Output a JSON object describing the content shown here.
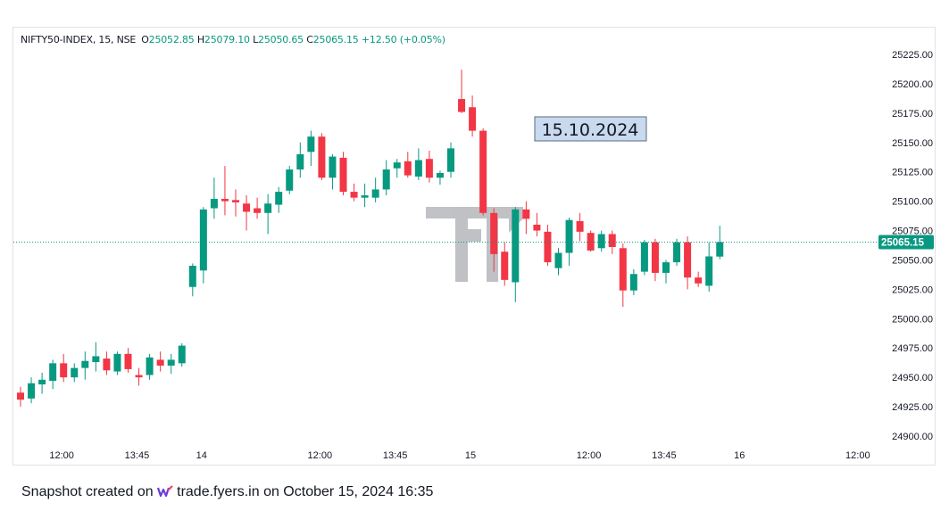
{
  "legend": {
    "symbol": "NIFTY50-INDEX, 15, NSE",
    "open_key": "O",
    "open": "25052.85",
    "high_key": "H",
    "high": "25079.10",
    "low_key": "L",
    "low": "25050.65",
    "close_key": "C",
    "close": "25065.15",
    "change": "+12.50 (+0.05%)"
  },
  "date_label": "15.10.2024",
  "footer": {
    "prefix": "Snapshot created on",
    "brand": "trade.fyers.in",
    "suffix": "on October 15, 2024 16:35"
  },
  "colors": {
    "up": "#089981",
    "down": "#f23645",
    "grid": "#e0e3eb",
    "last_price_badge": "#089981",
    "date_label_bg": "#c9d9ee",
    "date_label_border": "#5b6b82"
  },
  "chart_data": {
    "type": "candlestick",
    "y_axis": {
      "min": 24890,
      "max": 25230,
      "ticks": [
        "25225.00",
        "25200.00",
        "25175.00",
        "25150.00",
        "25125.00",
        "25100.00",
        "25075.00",
        "25050.00",
        "25025.00",
        "25000.00",
        "24975.00",
        "24950.00",
        "24925.00",
        "24900.00"
      ],
      "last_price": 25065.15,
      "last_price_label": "25065.15"
    },
    "x_axis": {
      "ticks": [
        {
          "label": "12:00",
          "index": 2
        },
        {
          "label": "13:45",
          "index": 9
        },
        {
          "label": "14",
          "index": 15
        },
        {
          "label": "12:00",
          "index": 26
        },
        {
          "label": "13:45",
          "index": 33
        },
        {
          "label": "15",
          "index": 40
        },
        {
          "label": "12:00",
          "index": 51
        },
        {
          "label": "13:45",
          "index": 58
        },
        {
          "label": "16",
          "index": 65
        },
        {
          "label": "12:00",
          "index": 76
        }
      ]
    },
    "candles": [
      {
        "o": 24937,
        "h": 24942,
        "l": 24925,
        "c": 24931
      },
      {
        "o": 24932,
        "h": 24950,
        "l": 24928,
        "c": 24945
      },
      {
        "o": 24944,
        "h": 24954,
        "l": 24936,
        "c": 24948
      },
      {
        "o": 24947,
        "h": 24965,
        "l": 24940,
        "c": 24962
      },
      {
        "o": 24962,
        "h": 24970,
        "l": 24946,
        "c": 24950
      },
      {
        "o": 24950,
        "h": 24962,
        "l": 24946,
        "c": 24958
      },
      {
        "o": 24958,
        "h": 24972,
        "l": 24948,
        "c": 24964
      },
      {
        "o": 24963,
        "h": 24980,
        "l": 24955,
        "c": 24968
      },
      {
        "o": 24966,
        "h": 24972,
        "l": 24952,
        "c": 24956
      },
      {
        "o": 24955,
        "h": 24972,
        "l": 24952,
        "c": 24970
      },
      {
        "o": 24970,
        "h": 24975,
        "l": 24954,
        "c": 24957
      },
      {
        "o": 24952,
        "h": 24958,
        "l": 24943,
        "c": 24950
      },
      {
        "o": 24952,
        "h": 24970,
        "l": 24948,
        "c": 24967
      },
      {
        "o": 24965,
        "h": 24972,
        "l": 24955,
        "c": 24960
      },
      {
        "o": 24960,
        "h": 24970,
        "l": 24953,
        "c": 24965
      },
      {
        "o": 24962,
        "h": 24979,
        "l": 24959,
        "c": 24977
      },
      {
        "o": 25027,
        "h": 25047,
        "l": 25019,
        "c": 25045
      },
      {
        "o": 25041,
        "h": 25095,
        "l": 25030,
        "c": 25093
      },
      {
        "o": 25094,
        "h": 25120,
        "l": 25085,
        "c": 25102
      },
      {
        "o": 25102,
        "h": 25130,
        "l": 25088,
        "c": 25100
      },
      {
        "o": 25101,
        "h": 25110,
        "l": 25087,
        "c": 25099
      },
      {
        "o": 25098,
        "h": 25105,
        "l": 25075,
        "c": 25091
      },
      {
        "o": 25094,
        "h": 25103,
        "l": 25085,
        "c": 25090
      },
      {
        "o": 25090,
        "h": 25106,
        "l": 25072,
        "c": 25098
      },
      {
        "o": 25097,
        "h": 25112,
        "l": 25090,
        "c": 25108
      },
      {
        "o": 25109,
        "h": 25130,
        "l": 25106,
        "c": 25127
      },
      {
        "o": 25127,
        "h": 25150,
        "l": 25120,
        "c": 25140
      },
      {
        "o": 25142,
        "h": 25160,
        "l": 25130,
        "c": 25155
      },
      {
        "o": 25155,
        "h": 25158,
        "l": 25118,
        "c": 25120
      },
      {
        "o": 25120,
        "h": 25140,
        "l": 25110,
        "c": 25138
      },
      {
        "o": 25137,
        "h": 25142,
        "l": 25105,
        "c": 25108
      },
      {
        "o": 25108,
        "h": 25115,
        "l": 25100,
        "c": 25103
      },
      {
        "o": 25103,
        "h": 25115,
        "l": 25095,
        "c": 25105
      },
      {
        "o": 25103,
        "h": 25120,
        "l": 25099,
        "c": 25110
      },
      {
        "o": 25110,
        "h": 25135,
        "l": 25105,
        "c": 25127
      },
      {
        "o": 25128,
        "h": 25136,
        "l": 25120,
        "c": 25133
      },
      {
        "o": 25134,
        "h": 25142,
        "l": 25120,
        "c": 25122
      },
      {
        "o": 25121,
        "h": 25145,
        "l": 25118,
        "c": 25135
      },
      {
        "o": 25136,
        "h": 25143,
        "l": 25116,
        "c": 25120
      },
      {
        "o": 25120,
        "h": 25126,
        "l": 25114,
        "c": 25124
      },
      {
        "o": 25125,
        "h": 25150,
        "l": 25120,
        "c": 25145
      },
      {
        "o": 25187,
        "h": 25212,
        "l": 25175,
        "c": 25176
      },
      {
        "o": 25180,
        "h": 25190,
        "l": 25155,
        "c": 25160
      },
      {
        "o": 25160,
        "h": 25162,
        "l": 25088,
        "c": 25090
      },
      {
        "o": 25090,
        "h": 25094,
        "l": 25040,
        "c": 25055
      },
      {
        "o": 25057,
        "h": 25065,
        "l": 25028,
        "c": 25033
      },
      {
        "o": 25031,
        "h": 25095,
        "l": 25014,
        "c": 25093
      },
      {
        "o": 25093,
        "h": 25100,
        "l": 25072,
        "c": 25085
      },
      {
        "o": 25080,
        "h": 25090,
        "l": 25070,
        "c": 25075
      },
      {
        "o": 25074,
        "h": 25080,
        "l": 25045,
        "c": 25048
      },
      {
        "o": 25043,
        "h": 25060,
        "l": 25037,
        "c": 25056
      },
      {
        "o": 25056,
        "h": 25086,
        "l": 25045,
        "c": 25084
      },
      {
        "o": 25083,
        "h": 25090,
        "l": 25066,
        "c": 25074
      },
      {
        "o": 25073,
        "h": 25075,
        "l": 25057,
        "c": 25058
      },
      {
        "o": 25060,
        "h": 25075,
        "l": 25057,
        "c": 25072
      },
      {
        "o": 25072,
        "h": 25075,
        "l": 25055,
        "c": 25061
      },
      {
        "o": 25060,
        "h": 25064,
        "l": 25010,
        "c": 25024
      },
      {
        "o": 25024,
        "h": 25042,
        "l": 25020,
        "c": 25038
      },
      {
        "o": 25040,
        "h": 25067,
        "l": 25037,
        "c": 25065
      },
      {
        "o": 25065,
        "h": 25068,
        "l": 25032,
        "c": 25039
      },
      {
        "o": 25039,
        "h": 25050,
        "l": 25030,
        "c": 25048
      },
      {
        "o": 25048,
        "h": 25068,
        "l": 25045,
        "c": 25065
      },
      {
        "o": 25065,
        "h": 25070,
        "l": 25025,
        "c": 25035
      },
      {
        "o": 25035,
        "h": 25040,
        "l": 25027,
        "c": 25030
      },
      {
        "o": 25028,
        "h": 25065,
        "l": 25023,
        "c": 25053
      },
      {
        "o": 25052.85,
        "h": 25079.1,
        "l": 25050.65,
        "c": 25065.15
      }
    ]
  }
}
